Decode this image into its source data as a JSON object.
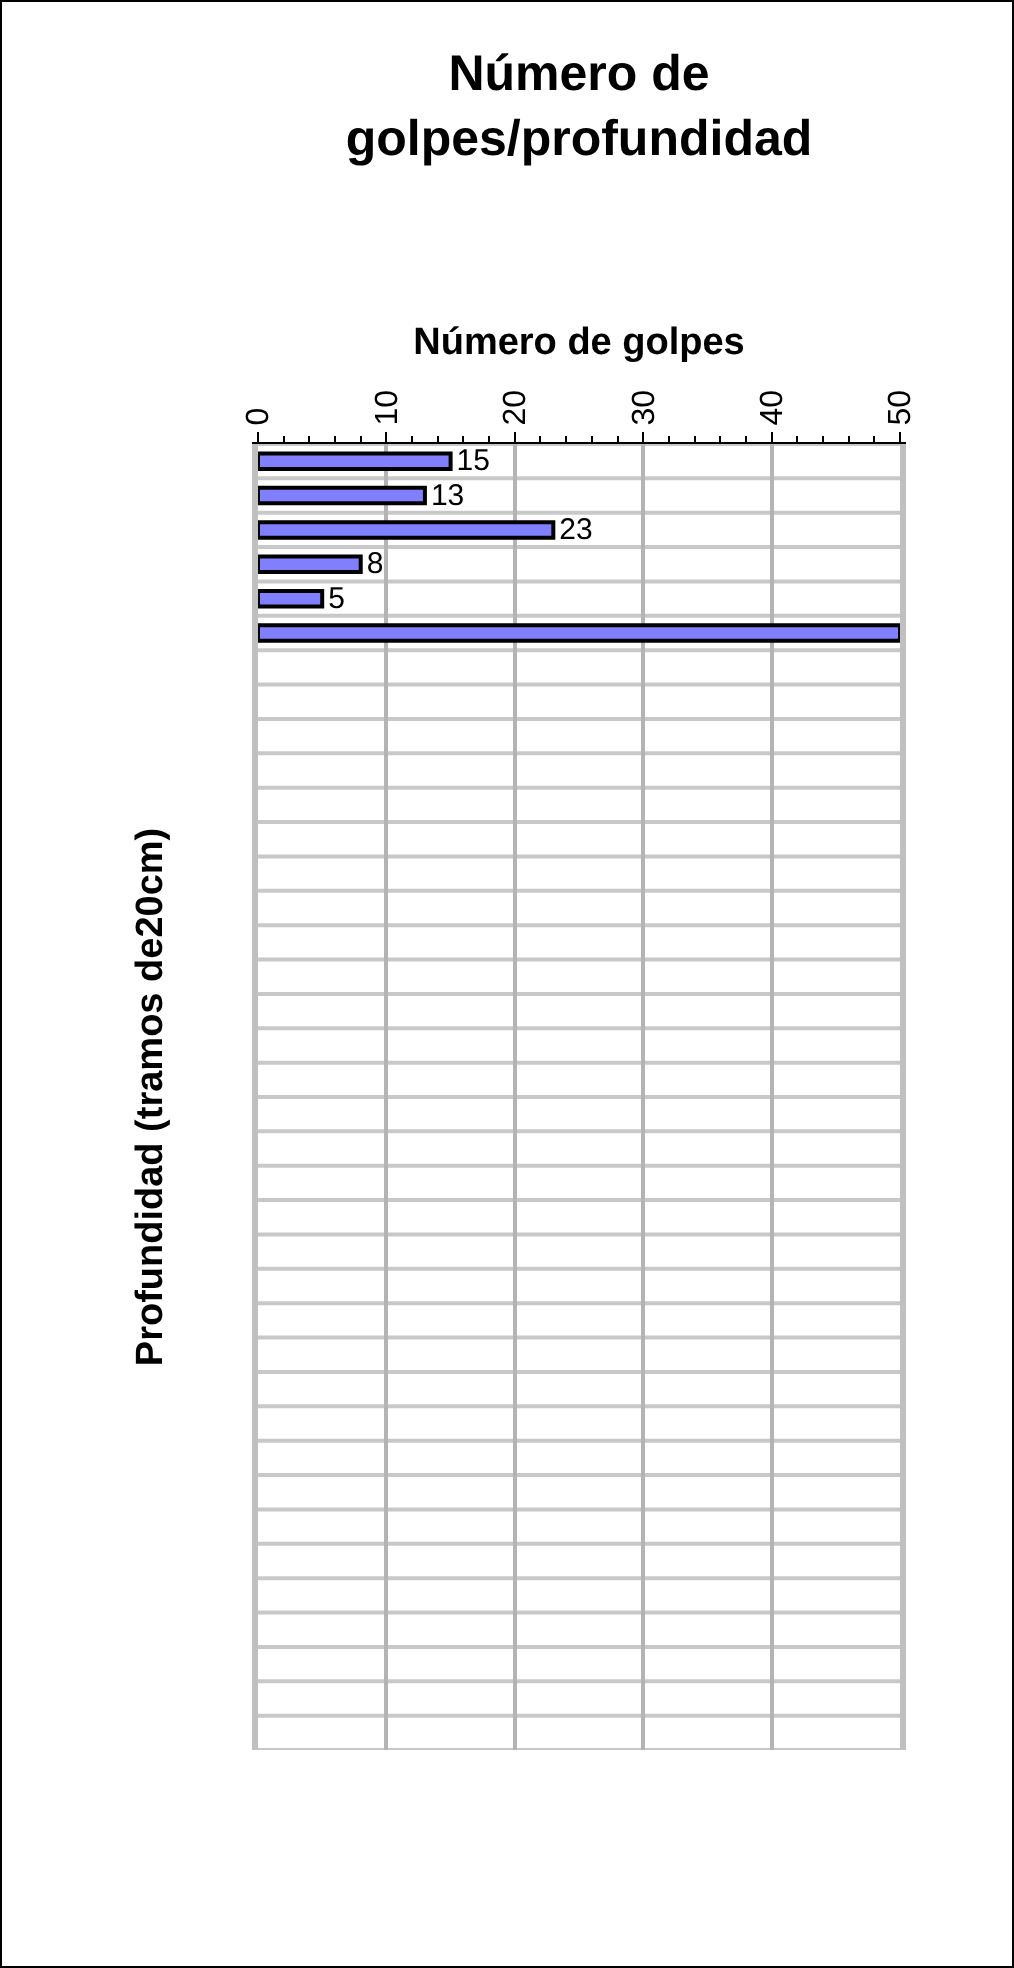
{
  "chart_data": {
    "type": "bar",
    "orientation": "horizontal",
    "title": "Número de golpes/profundidad",
    "xlabel": "Número de golpes",
    "ylabel": "Profundidad (tramos de20cm)",
    "categories": [
      null,
      null,
      null,
      null,
      null,
      null,
      null,
      null,
      null,
      null,
      null,
      null,
      null,
      null,
      null,
      null,
      null,
      null,
      null,
      null,
      null,
      null,
      null,
      null,
      null,
      null,
      null,
      null,
      null,
      null,
      null,
      null,
      null,
      null,
      null,
      null,
      null,
      null
    ],
    "values": [
      15,
      13,
      23,
      8,
      5,
      50,
      null,
      null,
      null,
      null,
      null,
      null,
      null,
      null,
      null,
      null,
      null,
      null,
      null,
      null,
      null,
      null,
      null,
      null,
      null,
      null,
      null,
      null,
      null,
      null,
      null,
      null,
      null,
      null,
      null,
      null,
      null,
      null
    ],
    "value_labels": [
      "15",
      "13",
      "23",
      "8",
      "5",
      null,
      null,
      null,
      null,
      null,
      null,
      null,
      null,
      null,
      null,
      null,
      null,
      null,
      null,
      null,
      null,
      null,
      null,
      null,
      null,
      null,
      null,
      null,
      null,
      null,
      null,
      null,
      null,
      null,
      null,
      null,
      null,
      null
    ],
    "color": "#8080ff",
    "xlim": [
      0,
      50
    ],
    "xticks": [
      0,
      10,
      20,
      30,
      40,
      50
    ],
    "grid": true,
    "tick_labels": "x"
  }
}
